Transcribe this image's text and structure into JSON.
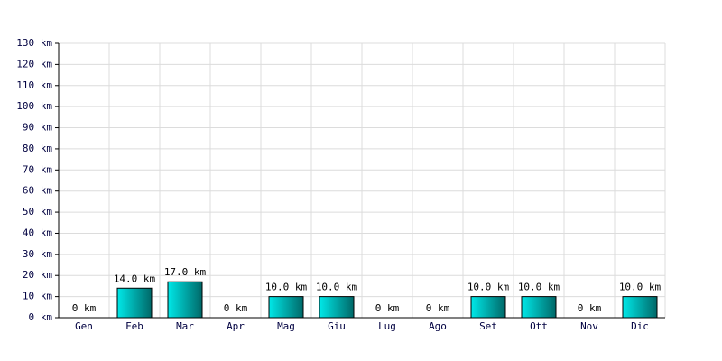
{
  "chart_data": {
    "type": "bar",
    "categories": [
      "Gen",
      "Feb",
      "Mar",
      "Apr",
      "Mag",
      "Giu",
      "Lug",
      "Ago",
      "Set",
      "Ott",
      "Nov",
      "Dic"
    ],
    "values": [
      0,
      14,
      17,
      0,
      10,
      10,
      0,
      0,
      10,
      10,
      0,
      10
    ],
    "value_labels": [
      "0 km",
      "14.0 km",
      "17.0 km",
      "0 km",
      "10.0 km",
      "10.0 km",
      "0 km",
      "0 km",
      "10.0 km",
      "10.0 km",
      "0 km",
      "10.0 km"
    ],
    "color": "#00e8e8",
    "ylim": [
      0,
      130
    ],
    "yticks": [
      {
        "value": 0,
        "label": "0 km"
      },
      {
        "value": 10,
        "label": "10 km"
      },
      {
        "value": 20,
        "label": "20 km"
      },
      {
        "value": 30,
        "label": "30 km"
      },
      {
        "value": 40,
        "label": "40 km"
      },
      {
        "value": 50,
        "label": "50 km"
      },
      {
        "value": 60,
        "label": "60 km"
      },
      {
        "value": 70,
        "label": "70 km"
      },
      {
        "value": 80,
        "label": "80 km"
      },
      {
        "value": 90,
        "label": "90 km"
      },
      {
        "value": 100,
        "label": "100 km"
      },
      {
        "value": 110,
        "label": "110 km"
      },
      {
        "value": 120,
        "label": "120 km"
      },
      {
        "value": 130,
        "label": "130 km"
      }
    ],
    "grid": true
  }
}
